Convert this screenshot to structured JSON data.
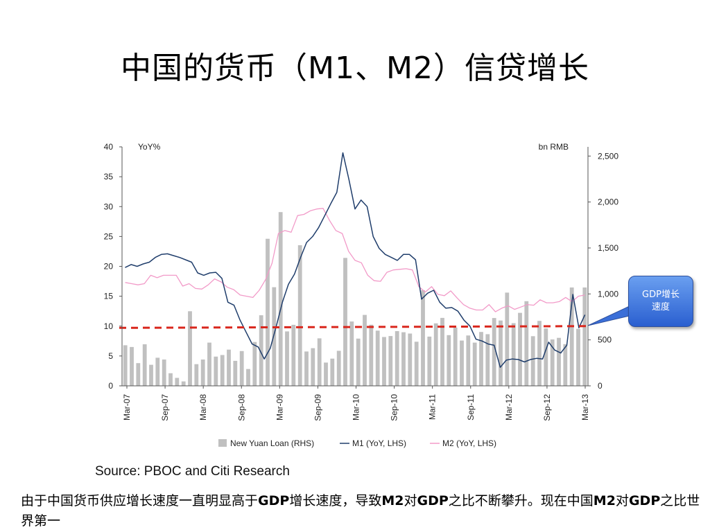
{
  "slide": {
    "title": "中国的货币（M1、M2）信贷增长",
    "source": "Source: PBOC and Citi Research",
    "note_parts": [
      {
        "text": "由于中国货币供应增长速度一直明显高于",
        "bold": false
      },
      {
        "text": "GDP",
        "bold": true
      },
      {
        "text": "增长速度，导致",
        "bold": false
      },
      {
        "text": "M2",
        "bold": true
      },
      {
        "text": "对",
        "bold": false
      },
      {
        "text": "GDP",
        "bold": true
      },
      {
        "text": "之比不断攀升。现在中国",
        "bold": false
      },
      {
        "text": "M2",
        "bold": true
      },
      {
        "text": "对",
        "bold": false
      },
      {
        "text": "GDP",
        "bold": true
      },
      {
        "text": "之比世界第一",
        "bold": false
      }
    ],
    "callout": "GDP增长速度"
  },
  "colors": {
    "bars": "#c0c0c0",
    "m1": "#1f3d6b",
    "m2": "#f29ac8",
    "gdp_line": "#d9261c",
    "axis": "#555555",
    "callout": "#3b6fd8"
  },
  "chart_data": {
    "type": "bar+line",
    "left_axis_label": "YoY%",
    "right_axis_label": "bn RMB",
    "left_ylim": [
      0,
      40
    ],
    "left_ticks": [
      "0",
      "5",
      "10",
      "15",
      "20",
      "25",
      "30",
      "35",
      "40"
    ],
    "right_ylim": [
      0,
      2600
    ],
    "right_ticks": [
      "0",
      "500",
      "1,000",
      "1,500",
      "2,000",
      "2,500"
    ],
    "x_ticks": [
      "Mar-07",
      "Sep-07",
      "Mar-08",
      "Sep-08",
      "Mar-09",
      "Sep-09",
      "Mar-10",
      "Sep-10",
      "Mar-11",
      "Sep-11",
      "Mar-12",
      "Sep-12",
      "Mar-13"
    ],
    "grid": false,
    "legend_position": "bottom",
    "series": [
      {
        "name": "New Yuan Loan (RHS)",
        "kind": "bar",
        "axis": "right",
        "values": [
          442,
          423,
          247,
          452,
          229,
          306,
          286,
          137,
          87,
          48,
          812,
          236,
          286,
          470,
          318,
          335,
          394,
          272,
          378,
          183,
          477,
          768,
          1600,
          1073,
          1890,
          592,
          664,
          1530,
          374,
          410,
          517,
          253,
          296,
          381,
          1392,
          700,
          514,
          772,
          665,
          601,
          531,
          542,
          595,
          583,
          569,
          480,
          1040,
          536,
          680,
          739,
          552,
          634,
          493,
          548,
          470,
          586,
          562,
          738,
          711,
          1014,
          682,
          794,
          921,
          540,
          707,
          624,
          505,
          522,
          454,
          1070,
          620,
          1070
        ]
      },
      {
        "name": "M1 (YoY, LHS)",
        "kind": "line",
        "axis": "left",
        "values": [
          19.8,
          20.3,
          20.0,
          20.4,
          20.7,
          21.5,
          22.0,
          22.1,
          21.8,
          21.5,
          21.1,
          20.7,
          18.9,
          18.5,
          18.9,
          19.0,
          18.0,
          14.0,
          13.5,
          11.0,
          9.0,
          7.0,
          6.5,
          4.5,
          6.3,
          10.0,
          14.0,
          17.0,
          18.7,
          21.5,
          24.0,
          25.0,
          26.5,
          28.5,
          30.5,
          32.4,
          39.0,
          34.5,
          29.6,
          31.1,
          30.0,
          25.0,
          23.0,
          22.0,
          21.5,
          21.0,
          22.0,
          22.0,
          21.1,
          14.5,
          15.5,
          16.0,
          14.0,
          13.0,
          13.1,
          12.5,
          11.0,
          10.0,
          7.8,
          7.5,
          7.0,
          6.8,
          3.1,
          4.3,
          4.5,
          4.4,
          4.0,
          4.4,
          4.6,
          4.5,
          7.3,
          6.0,
          5.5,
          6.8,
          15.3,
          9.7,
          11.9
        ]
      },
      {
        "name": "M2 (YoY, LHS)",
        "kind": "line",
        "axis": "left",
        "values": [
          17.3,
          17.1,
          16.9,
          17.1,
          18.5,
          18.1,
          18.5,
          18.5,
          18.5,
          16.7,
          17.1,
          16.3,
          16.2,
          16.9,
          17.9,
          17.4,
          16.5,
          16.1,
          15.2,
          15.0,
          14.8,
          16.0,
          17.8,
          20.5,
          25.5,
          26.0,
          25.7,
          28.5,
          28.7,
          29.3,
          29.6,
          29.7,
          27.7,
          26.0,
          25.5,
          22.5,
          21.0,
          20.6,
          18.5,
          17.6,
          17.5,
          19.0,
          19.4,
          19.5,
          19.6,
          19.4,
          16.6,
          15.7,
          16.6,
          15.3,
          15.1,
          15.9,
          14.7,
          13.6,
          13.0,
          12.7,
          12.7,
          13.6,
          12.4,
          13.0,
          13.4,
          12.8,
          13.2,
          13.6,
          13.5,
          14.4,
          13.9,
          13.9,
          14.1,
          14.8,
          14.1,
          15.0,
          15.2
        ]
      },
      {
        "name": "GDP",
        "kind": "dashed-line",
        "axis": "left",
        "values": [
          9.7,
          10.0
        ]
      }
    ]
  }
}
